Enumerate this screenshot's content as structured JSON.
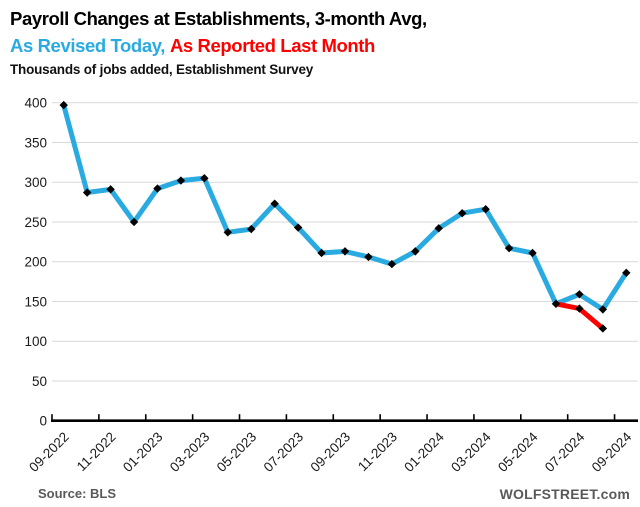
{
  "header": {
    "title_line1": "Payroll Changes at Establishments, 3-month Avg,",
    "legend_blue": "As Revised Today,",
    "legend_red": "As Reported Last Month",
    "subtitle": "Thousands of jobs added, Establishment Survey"
  },
  "footer": {
    "source": "Source: BLS",
    "site": "WOLFSTREET.com"
  },
  "colors": {
    "revised_line": "#29ABE2",
    "reported_line": "#FF0000",
    "marker": "#000000",
    "gridline": "#D9D9D9",
    "axis": "#000000",
    "tick_text": "#1a1a1a"
  },
  "chart_data": {
    "type": "line",
    "title": "Payroll Changes at Establishments, 3-month Avg",
    "subtitle": "Thousands of jobs added, Establishment Survey",
    "ylabel": "Thousands of jobs added",
    "ylim": [
      0,
      400
    ],
    "y_ticks": [
      0,
      50,
      100,
      150,
      200,
      250,
      300,
      350,
      400
    ],
    "grid": "horizontal",
    "legend_position": "in-title",
    "categories": [
      "09-2022",
      "10-2022",
      "11-2022",
      "12-2022",
      "01-2023",
      "02-2023",
      "03-2023",
      "04-2023",
      "05-2023",
      "06-2023",
      "07-2023",
      "08-2023",
      "09-2023",
      "10-2023",
      "11-2023",
      "12-2023",
      "01-2024",
      "02-2024",
      "03-2024",
      "04-2024",
      "05-2024",
      "06-2024",
      "07-2024",
      "08-2024",
      "09-2024"
    ],
    "x_tick_labels": [
      "09-2022",
      "11-2022",
      "01-2023",
      "03-2023",
      "05-2023",
      "07-2023",
      "09-2023",
      "11-2023",
      "01-2024",
      "03-2024",
      "05-2024",
      "07-2024",
      "09-2024"
    ],
    "series": [
      {
        "name": "As Revised Today",
        "color": "#29ABE2",
        "start_index": 0,
        "values": [
          397,
          287,
          291,
          250,
          292,
          302,
          305,
          237,
          241,
          273,
          243,
          211,
          213,
          206,
          197,
          213,
          242,
          261,
          266,
          217,
          211,
          147,
          159,
          140,
          186
        ]
      },
      {
        "name": "As Reported Last Month",
        "color": "#FF0000",
        "start_index": 21,
        "values": [
          147,
          141,
          116
        ]
      }
    ]
  }
}
